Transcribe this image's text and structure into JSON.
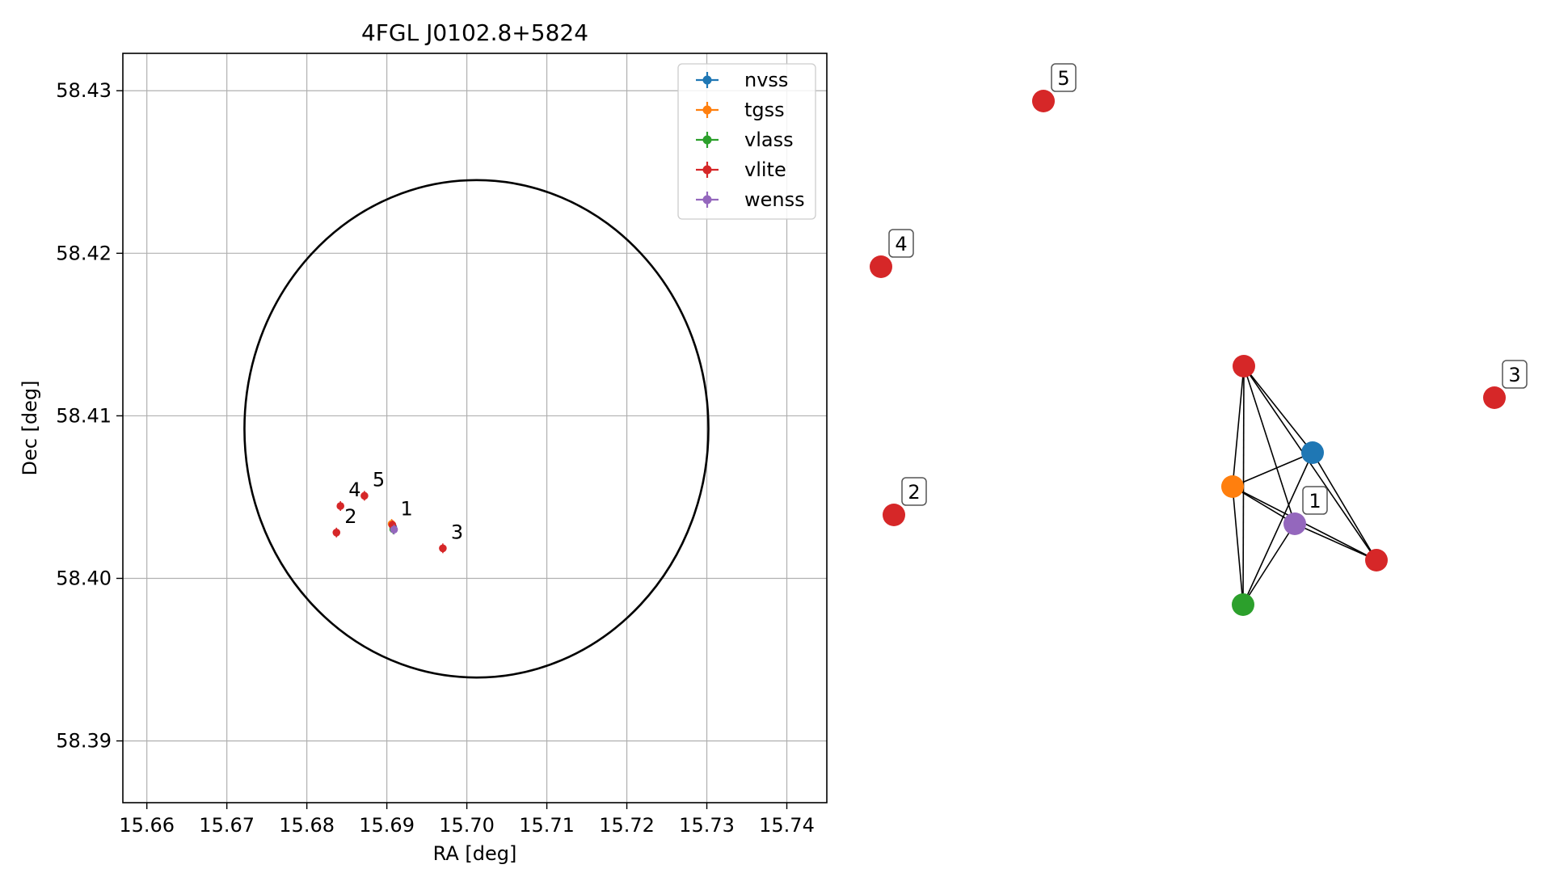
{
  "chart_data": [
    {
      "type": "scatter",
      "title": "4FGL J0102.8+5824",
      "xlabel": "RA [deg]",
      "ylabel": "Dec [deg]",
      "xlim": [
        15.657,
        15.745
      ],
      "ylim": [
        58.3862,
        58.4323
      ],
      "xticks": [
        "15.66",
        "15.67",
        "15.68",
        "15.69",
        "15.70",
        "15.71",
        "15.72",
        "15.73",
        "15.74"
      ],
      "yticks": [
        "58.39",
        "58.40",
        "58.41",
        "58.42",
        "58.43"
      ],
      "grid": true,
      "legend_position": "upper-right",
      "ellipse": {
        "center": [
          15.7012,
          58.4092
        ],
        "semi_axis_ra": 0.029,
        "semi_axis_dec": 0.0153,
        "color": "#000000"
      },
      "series": [
        {
          "name": "nvss",
          "color": "#1f77b4",
          "points": [
            {
              "x": 15.6908,
              "y": 58.40314,
              "label": ""
            }
          ]
        },
        {
          "name": "tgss",
          "color": "#ff7f0e",
          "points": [
            {
              "x": 15.6906,
              "y": 58.40335,
              "label": ""
            }
          ]
        },
        {
          "name": "vlass",
          "color": "#2ca02c",
          "points": [
            {
              "x": 15.6908,
              "y": 58.40302,
              "label": ""
            }
          ]
        },
        {
          "name": "vlite",
          "color": "#d62728",
          "points": [
            {
              "x": 15.6907,
              "y": 58.40328,
              "label": "1"
            },
            {
              "x": 15.6837,
              "y": 58.40282,
              "label": "2"
            },
            {
              "x": 15.697,
              "y": 58.40185,
              "label": "3"
            },
            {
              "x": 15.6842,
              "y": 58.40445,
              "label": "4"
            },
            {
              "x": 15.6872,
              "y": 58.40508,
              "label": "5"
            }
          ]
        },
        {
          "name": "wenss",
          "color": "#9467bd",
          "points": [
            {
              "x": 15.6909,
              "y": 58.403,
              "label": ""
            }
          ]
        }
      ]
    },
    {
      "type": "network",
      "nodes": [
        {
          "id": "n1",
          "label": "",
          "color": "#d62728"
        },
        {
          "id": "n2",
          "label": "",
          "color": "#1f77b4"
        },
        {
          "id": "n3",
          "label": "",
          "color": "#ff7f0e"
        },
        {
          "id": "n4",
          "label": "1",
          "color": "#9467bd"
        },
        {
          "id": "n5",
          "label": "",
          "color": "#d62728"
        },
        {
          "id": "n6",
          "label": "",
          "color": "#2ca02c"
        },
        {
          "id": "n7",
          "label": "2",
          "color": "#d62728"
        },
        {
          "id": "n8",
          "label": "3",
          "color": "#d62728"
        },
        {
          "id": "n9",
          "label": "4",
          "color": "#d62728"
        },
        {
          "id": "n10",
          "label": "5",
          "color": "#d62728"
        }
      ],
      "edges": [
        [
          "n1",
          "n2"
        ],
        [
          "n1",
          "n3"
        ],
        [
          "n1",
          "n4"
        ],
        [
          "n1",
          "n5"
        ],
        [
          "n1",
          "n6"
        ],
        [
          "n2",
          "n3"
        ],
        [
          "n2",
          "n5"
        ],
        [
          "n2",
          "n6"
        ],
        [
          "n3",
          "n4"
        ],
        [
          "n3",
          "n5"
        ],
        [
          "n3",
          "n6"
        ],
        [
          "n4",
          "n5"
        ],
        [
          "n4",
          "n6"
        ]
      ]
    }
  ]
}
